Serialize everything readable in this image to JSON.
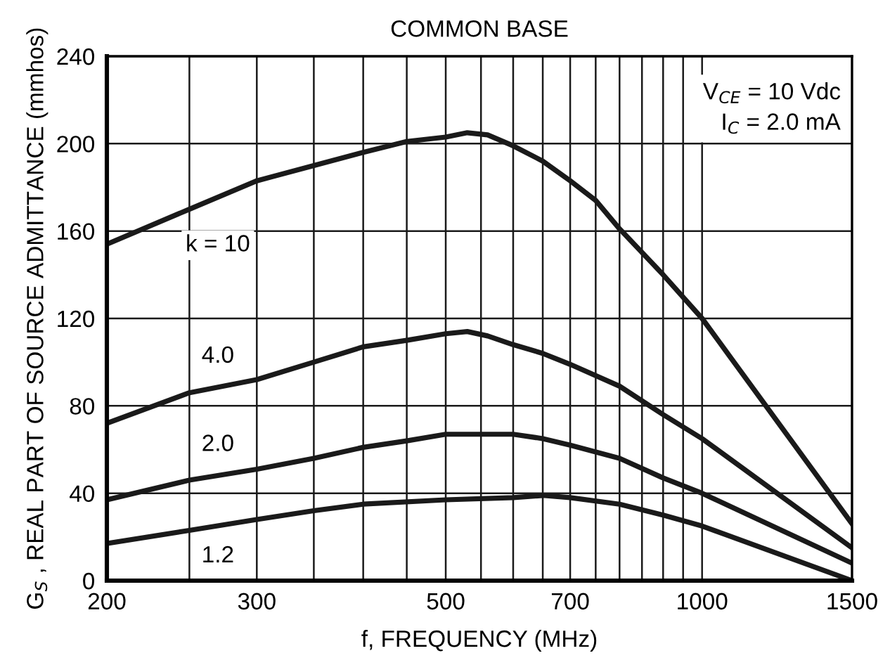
{
  "chart_data": {
    "type": "line",
    "title": "COMMON BASE",
    "xlabel": "f, FREQUENCY (MHz)",
    "ylabel": "G$_{S}$ , REAL PART OF SOURCE ADMITTANCE (mmhos)",
    "log": "x",
    "xlim": [
      200,
      1500
    ],
    "ylim": [
      0,
      240
    ],
    "xticks": [
      200,
      {
        "value": 250,
        "label": null
      },
      300,
      {
        "value": 350,
        "label": null
      },
      {
        "value": 400,
        "label": null
      },
      {
        "value": 450,
        "label": null
      },
      500,
      {
        "value": 550,
        "label": null
      },
      {
        "value": 600,
        "label": null
      },
      {
        "value": 650,
        "label": null
      },
      700,
      {
        "value": 750,
        "label": null
      },
      {
        "value": 800,
        "label": null
      },
      {
        "value": 850,
        "label": null
      },
      {
        "value": 900,
        "label": null
      },
      {
        "value": 950,
        "label": null
      },
      1000,
      1500
    ],
    "yticks": [
      0,
      40,
      80,
      120,
      160,
      200,
      240
    ],
    "grid": true,
    "legend": false,
    "marker": "none",
    "line_style": "solid",
    "annotations": [
      "V$_{CE}$ = 10 Vdc",
      "I$_{C}$ = 2.0 mA"
    ],
    "series": [
      {
        "name": "k = 10",
        "color": "#1a1a1a",
        "x": [
          200,
          250,
          300,
          350,
          400,
          450,
          500,
          530,
          560,
          600,
          650,
          700,
          750,
          800,
          900,
          1000,
          1500
        ],
        "values": [
          154,
          170,
          183,
          190,
          196,
          201,
          203,
          205,
          204,
          199,
          192,
          183,
          174,
          161,
          140,
          120,
          26
        ]
      },
      {
        "name": "4.0",
        "color": "#1a1a1a",
        "x": [
          200,
          250,
          300,
          350,
          400,
          450,
          500,
          530,
          560,
          600,
          650,
          700,
          800,
          900,
          1000,
          1500
        ],
        "values": [
          72,
          86,
          92,
          100,
          107,
          110,
          113,
          114,
          112,
          108,
          104,
          99,
          89,
          76,
          65,
          15
        ]
      },
      {
        "name": "2.0",
        "color": "#1a1a1a",
        "x": [
          200,
          250,
          300,
          350,
          400,
          450,
          500,
          600,
          650,
          700,
          800,
          900,
          1000,
          1500
        ],
        "values": [
          37,
          46,
          51,
          56,
          61,
          64,
          67,
          67,
          65,
          62,
          56,
          47,
          40,
          8
        ]
      },
      {
        "name": "1.2",
        "color": "#1a1a1a",
        "x": [
          200,
          250,
          300,
          350,
          400,
          500,
          600,
          650,
          700,
          800,
          900,
          1000,
          1500
        ],
        "values": [
          17,
          23,
          28,
          32,
          35,
          37,
          38,
          39,
          38,
          35,
          30,
          25,
          0
        ]
      }
    ]
  }
}
